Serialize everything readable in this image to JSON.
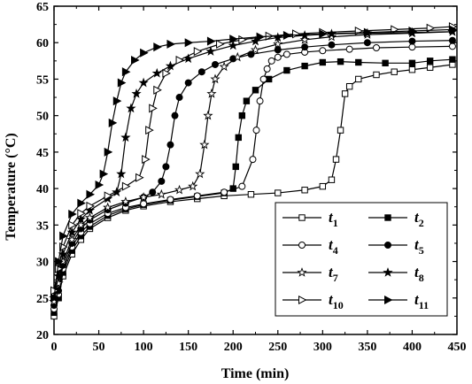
{
  "chart_data": {
    "type": "line",
    "xlabel": "Time (min)",
    "ylabel": "Temperature (°C)",
    "xlim": [
      0,
      450
    ],
    "ylim": [
      20,
      65
    ],
    "xticks": [
      0,
      50,
      100,
      150,
      200,
      250,
      300,
      350,
      400,
      450
    ],
    "yticks": [
      20,
      25,
      30,
      35,
      40,
      45,
      50,
      55,
      60,
      65
    ],
    "grid": false,
    "legend_position": "lower-right",
    "legend_ncol": 2,
    "series": [
      {
        "name": "t",
        "sub": "1",
        "marker": "square",
        "filled": false,
        "x": [
          0,
          5,
          10,
          20,
          30,
          40,
          60,
          80,
          100,
          130,
          160,
          190,
          220,
          250,
          280,
          300,
          310,
          315,
          320,
          325,
          330,
          340,
          360,
          380,
          400,
          420,
          445
        ],
        "y": [
          22.5,
          25,
          28,
          31,
          33,
          34.5,
          36,
          37,
          37.6,
          38.2,
          38.6,
          39,
          39.2,
          39.4,
          39.8,
          40.3,
          41.2,
          44,
          48,
          53,
          54,
          55,
          55.6,
          56,
          56.3,
          56.6,
          57
        ]
      },
      {
        "name": "t",
        "sub": "2",
        "marker": "square",
        "filled": true,
        "x": [
          0,
          5,
          10,
          20,
          30,
          40,
          60,
          80,
          100,
          130,
          160,
          190,
          200,
          203,
          206,
          210,
          215,
          225,
          240,
          260,
          280,
          300,
          320,
          340,
          370,
          400,
          420,
          445
        ],
        "y": [
          23,
          25,
          28.5,
          31.5,
          33.5,
          34.8,
          36.3,
          37.2,
          37.8,
          38.4,
          38.9,
          39.4,
          40,
          43,
          47,
          50,
          52,
          53.5,
          55,
          56.2,
          56.8,
          57.3,
          57.4,
          57.3,
          57.2,
          57.2,
          57.5,
          57.7
        ]
      },
      {
        "name": "t",
        "sub": "4",
        "marker": "circle",
        "filled": false,
        "x": [
          0,
          5,
          10,
          20,
          30,
          40,
          60,
          80,
          100,
          130,
          160,
          190,
          210,
          222,
          226,
          230,
          234,
          238,
          243,
          250,
          260,
          280,
          300,
          330,
          360,
          400,
          445
        ],
        "y": [
          23.5,
          25.5,
          29,
          32,
          34,
          35.2,
          36.6,
          37.4,
          37.9,
          38.5,
          39,
          39.5,
          40.3,
          44,
          48,
          52,
          55,
          56.4,
          57.5,
          58,
          58.4,
          58.7,
          58.9,
          59.1,
          59.3,
          59.4,
          59.5
        ]
      },
      {
        "name": "t",
        "sub": "5",
        "marker": "circle",
        "filled": true,
        "x": [
          0,
          5,
          10,
          20,
          30,
          40,
          60,
          80,
          100,
          110,
          120,
          125,
          130,
          135,
          140,
          150,
          165,
          180,
          200,
          220,
          250,
          280,
          310,
          350,
          400,
          445
        ],
        "y": [
          24,
          26,
          29.5,
          32.5,
          34.5,
          35.7,
          37.1,
          38,
          38.8,
          39.5,
          41,
          43,
          46,
          50,
          52.5,
          54.5,
          56,
          57,
          57.8,
          58.4,
          59,
          59.4,
          59.7,
          60,
          60.2,
          60.3
        ]
      },
      {
        "name": "t",
        "sub": "7",
        "marker": "star",
        "filled": false,
        "x": [
          0,
          5,
          10,
          20,
          30,
          40,
          60,
          80,
          100,
          120,
          140,
          155,
          163,
          168,
          172,
          176,
          180,
          190,
          205,
          225,
          250,
          280,
          310,
          350,
          400,
          445
        ],
        "y": [
          24.5,
          27,
          30,
          33,
          35,
          36,
          37.4,
          38.2,
          38.8,
          39.2,
          39.8,
          40.3,
          42,
          46,
          50,
          53,
          55,
          56.7,
          58,
          59,
          59.8,
          60.4,
          60.8,
          61.1,
          61.3,
          61.5
        ]
      },
      {
        "name": "t",
        "sub": "8",
        "marker": "star",
        "filled": true,
        "x": [
          0,
          5,
          10,
          20,
          30,
          40,
          60,
          70,
          75,
          80,
          86,
          92,
          100,
          115,
          130,
          150,
          175,
          200,
          225,
          250,
          280,
          310,
          350,
          400,
          445
        ],
        "y": [
          25,
          28,
          31,
          34,
          35.8,
          37,
          38.6,
          39.5,
          42,
          47,
          51,
          53,
          54.5,
          55.8,
          56.8,
          57.8,
          58.8,
          59.6,
          60.2,
          60.7,
          61,
          61.2,
          61.3,
          61.4,
          61.5
        ]
      },
      {
        "name": "t",
        "sub": "10",
        "marker": "triangle-right",
        "filled": false,
        "x": [
          0,
          5,
          10,
          20,
          30,
          40,
          60,
          80,
          95,
          102,
          106,
          110,
          115,
          125,
          140,
          160,
          185,
          210,
          240,
          270,
          300,
          340,
          380,
          420,
          445
        ],
        "y": [
          26,
          29,
          32,
          35,
          36.6,
          37.6,
          39,
          40.3,
          41.5,
          44,
          48,
          51,
          53.5,
          55.8,
          57.6,
          58.8,
          59.8,
          60.4,
          60.9,
          61.2,
          61.4,
          61.6,
          61.8,
          62,
          62.2
        ]
      },
      {
        "name": "t",
        "sub": "11",
        "marker": "triangle-right",
        "filled": true,
        "x": [
          0,
          5,
          10,
          20,
          30,
          40,
          50,
          55,
          60,
          65,
          70,
          75,
          80,
          90,
          100,
          115,
          130,
          150,
          175,
          200,
          230,
          260,
          300,
          350,
          400,
          445
        ],
        "y": [
          25,
          30,
          33.5,
          36.5,
          38,
          39.2,
          40.5,
          42,
          45,
          49,
          52,
          54.5,
          56,
          57.6,
          58.6,
          59.4,
          59.8,
          60,
          60.2,
          60.5,
          60.8,
          61,
          61.2,
          61.4,
          61.6,
          61.8
        ]
      }
    ]
  }
}
